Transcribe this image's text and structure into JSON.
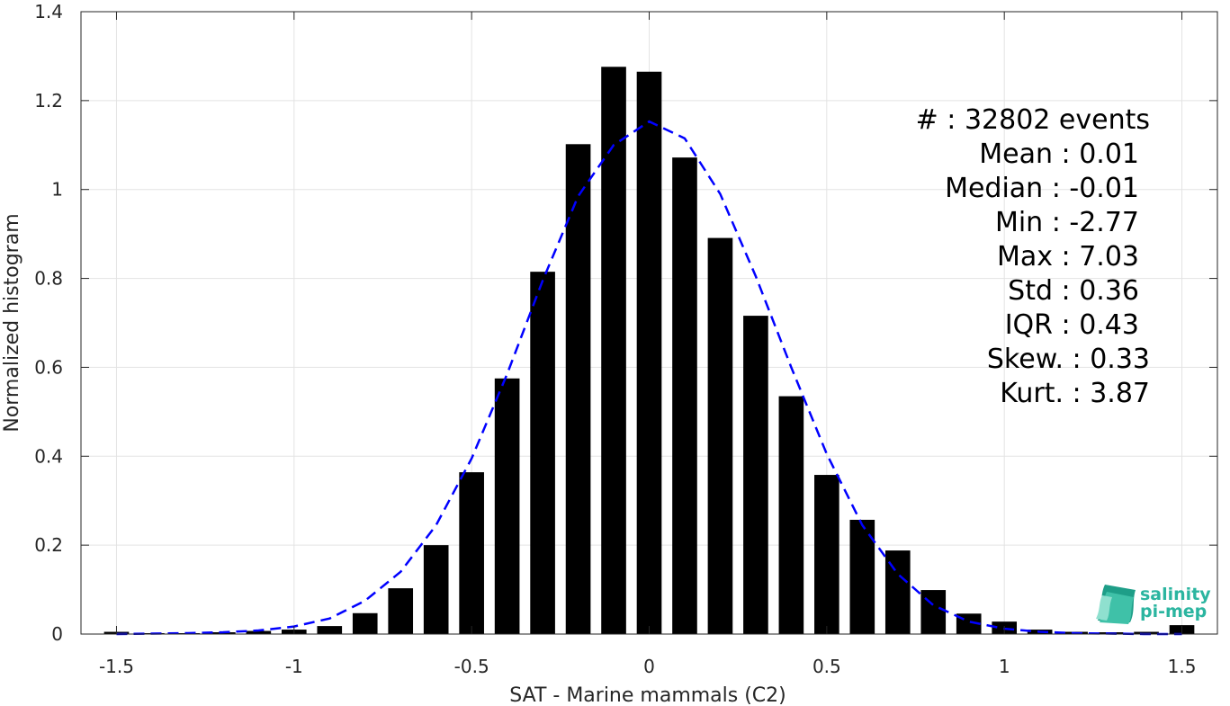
{
  "chart_data": {
    "type": "bar",
    "xlabel": "SAT - Marine mammals (C2)",
    "ylabel": "Normalized histogram",
    "xlim": [
      -1.6,
      1.6
    ],
    "ylim": [
      0,
      1.4
    ],
    "xticks": [
      -1.5,
      -1,
      -0.5,
      0,
      0.5,
      1,
      1.5
    ],
    "xtick_labels": [
      "-1.5",
      "-1",
      "-0.5",
      "0",
      "0.5",
      "1",
      "1.5"
    ],
    "yticks": [
      0,
      0.2,
      0.4,
      0.6,
      0.8,
      1,
      1.2,
      1.4
    ],
    "ytick_labels": [
      "0",
      "0.2",
      "0.4",
      "0.6",
      "0.8",
      "1",
      "1.2",
      "1.4"
    ],
    "grid": true,
    "bar_width": 0.07,
    "bars_color": "#000000",
    "fit_color": "#0000ff",
    "bars": {
      "x": [
        -1.5,
        -1.4,
        -1.3,
        -1.2,
        -1.1,
        -1.0,
        -0.9,
        -0.8,
        -0.7,
        -0.6,
        -0.5,
        -0.4,
        -0.3,
        -0.2,
        -0.1,
        0.0,
        0.1,
        0.2,
        0.3,
        0.4,
        0.5,
        0.6,
        0.7,
        0.8,
        0.9,
        1.0,
        1.1,
        1.2,
        1.3,
        1.4,
        1.5
      ],
      "values": [
        0.005,
        0.002,
        0.002,
        0.004,
        0.007,
        0.01,
        0.018,
        0.047,
        0.103,
        0.2,
        0.364,
        0.575,
        0.815,
        1.102,
        1.276,
        1.265,
        1.072,
        0.891,
        0.716,
        0.535,
        0.358,
        0.257,
        0.188,
        0.099,
        0.046,
        0.028,
        0.01,
        0.005,
        0.004,
        0.005,
        0.02
      ]
    },
    "fit": {
      "style": "dashed",
      "x": [
        -1.5,
        -1.4,
        -1.3,
        -1.2,
        -1.1,
        -1.0,
        -0.9,
        -0.8,
        -0.7,
        -0.6,
        -0.5,
        -0.4,
        -0.3,
        -0.2,
        -0.1,
        0.0,
        0.1,
        0.2,
        0.3,
        0.4,
        0.5,
        0.6,
        0.7,
        0.8,
        0.9,
        1.0,
        1.1,
        1.2,
        1.3,
        1.4,
        1.5
      ],
      "y": [
        0.0,
        0.001,
        0.002,
        0.004,
        0.008,
        0.017,
        0.035,
        0.075,
        0.14,
        0.245,
        0.395,
        0.585,
        0.795,
        0.985,
        1.1,
        1.153,
        1.115,
        0.99,
        0.805,
        0.6,
        0.405,
        0.245,
        0.135,
        0.065,
        0.028,
        0.012,
        0.005,
        0.002,
        0.001,
        0.0,
        0.0
      ]
    },
    "stats": {
      "lines": [
        "#  : 32802 events",
        "Mean : 0.01",
        "Median : -0.01",
        "Min : -2.77",
        "Max : 7.03",
        "Std : 0.36",
        "IQR : 0.43",
        "Skew. : 0.33",
        "Kurt. : 3.87"
      ]
    }
  },
  "logo": {
    "line1": "salinity",
    "line2": "pi-mep",
    "color": "#2bb5a0"
  }
}
